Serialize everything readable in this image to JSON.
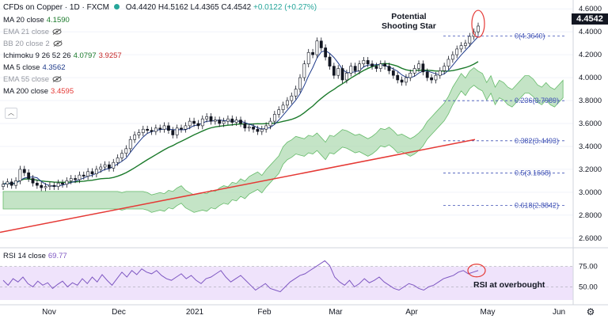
{
  "header": {
    "symbol": "CFDs on Copper · 1D · FXCM",
    "open": "O4.4420",
    "high": "H4.5162",
    "low": "L4.4365",
    "close": "C4.4542",
    "change": "+0.0122 (+0.27%)"
  },
  "indicators": [
    {
      "label": "MA 20 close",
      "value": "4.1590",
      "color": "#1b7a2b",
      "eye": false
    },
    {
      "label": "EMA 21 close",
      "value": "",
      "color": "#9598a1",
      "eye": true
    },
    {
      "label": "BB 20 close 2",
      "value": "",
      "color": "#9598a1",
      "eye": true
    },
    {
      "label": "Ichimoku 9 26 52 26",
      "value": "4.0797",
      "value2": "3.9257",
      "color": "#1b7a2b",
      "color2": "#c62828",
      "eye": false
    },
    {
      "label": "MA 5 close",
      "value": "4.3562",
      "color": "#1e3a8a",
      "eye": false
    },
    {
      "label": "EMA 55 close",
      "value": "",
      "color": "#9598a1",
      "eye": true
    },
    {
      "label": "MA 200 close",
      "value": "3.4595",
      "color": "#e53935",
      "eye": false
    }
  ],
  "rsi": {
    "label": "RSI 14 close",
    "value": "69.77",
    "color": "#7e57c2"
  },
  "annotations": {
    "shooting_star": "Potential\nShooting Star",
    "rsi_overbought": "RSI at overbought"
  },
  "current_price": "4.4542",
  "chart_data": {
    "type": "candlestick",
    "title": "CFDs on Copper · 1D · FXCM",
    "y_axis_ticks": [
      "4.6000",
      "4.4000",
      "4.2000",
      "4.0000",
      "3.8000",
      "3.6000",
      "3.4000",
      "3.2000",
      "3.0000",
      "2.8000",
      "2.6000"
    ],
    "ylim": [
      2.55,
      4.65
    ],
    "rsi_ticks": [
      "75.00",
      "50.00"
    ],
    "x_axis_ticks": [
      "Nov",
      "Dec",
      "2021",
      "Feb",
      "Mar",
      "Apr",
      "May",
      "Jun"
    ],
    "fibonacci": [
      {
        "label": "0(4.3640)",
        "value": 4.364
      },
      {
        "label": "0.236(3.7989)",
        "value": 3.7989
      },
      {
        "label": "0.382(3.4493)",
        "value": 3.4493
      },
      {
        "label": "0.5(3.1668)",
        "value": 3.1668
      },
      {
        "label": "0.618(2.8842)",
        "value": 2.8842
      }
    ],
    "close_series": [
      3.07,
      3.09,
      3.06,
      3.1,
      3.2,
      3.17,
      3.12,
      3.08,
      3.06,
      3.04,
      3.05,
      3.06,
      3.05,
      3.08,
      3.07,
      3.1,
      3.12,
      3.11,
      3.15,
      3.14,
      3.18,
      3.16,
      3.2,
      3.22,
      3.24,
      3.21,
      3.26,
      3.3,
      3.34,
      3.38,
      3.46,
      3.5,
      3.52,
      3.55,
      3.54,
      3.53,
      3.56,
      3.55,
      3.58,
      3.54,
      3.5,
      3.56,
      3.55,
      3.58,
      3.62,
      3.6,
      3.58,
      3.64,
      3.66,
      3.62,
      3.63,
      3.6,
      3.62,
      3.64,
      3.61,
      3.63,
      3.6,
      3.56,
      3.57,
      3.55,
      3.53,
      3.55,
      3.58,
      3.62,
      3.68,
      3.72,
      3.76,
      3.8,
      3.84,
      3.9,
      4.0,
      4.12,
      4.22,
      4.2,
      4.32,
      4.26,
      4.18,
      4.1,
      4.02,
      4.08,
      3.98,
      4.04,
      4.1,
      4.06,
      4.12,
      4.15,
      4.12,
      4.1,
      4.08,
      4.12,
      4.1,
      4.06,
      4.02,
      3.98,
      3.96,
      4.0,
      4.04,
      4.08,
      4.12,
      4.05,
      4.0,
      3.98,
      4.02,
      4.06,
      4.1,
      4.16,
      4.2,
      4.25,
      4.28,
      4.3,
      4.36,
      4.4,
      4.45
    ],
    "ma200": [
      2.65,
      3.46
    ],
    "rsi_series": [
      58,
      52,
      60,
      56,
      62,
      54,
      50,
      57,
      52,
      55,
      48,
      53,
      57,
      50,
      55,
      52,
      60,
      54,
      62,
      56,
      65,
      58,
      52,
      60,
      68,
      62,
      70,
      65,
      72,
      68,
      66,
      70,
      64,
      60,
      58,
      62,
      66,
      60,
      64,
      58,
      54,
      60,
      62,
      66,
      70,
      62,
      56,
      60,
      64,
      58,
      52,
      46,
      50,
      54,
      48,
      46,
      44,
      50,
      56,
      60,
      64,
      66,
      70,
      74,
      78,
      82,
      76,
      62,
      56,
      52,
      58,
      50,
      54,
      60,
      55,
      58,
      62,
      56,
      52,
      48,
      46,
      50,
      54,
      52,
      48,
      46,
      50,
      52,
      56,
      60,
      62,
      64,
      68,
      70,
      66,
      68,
      70
    ],
    "rsi_ylim": [
      30,
      95
    ]
  }
}
